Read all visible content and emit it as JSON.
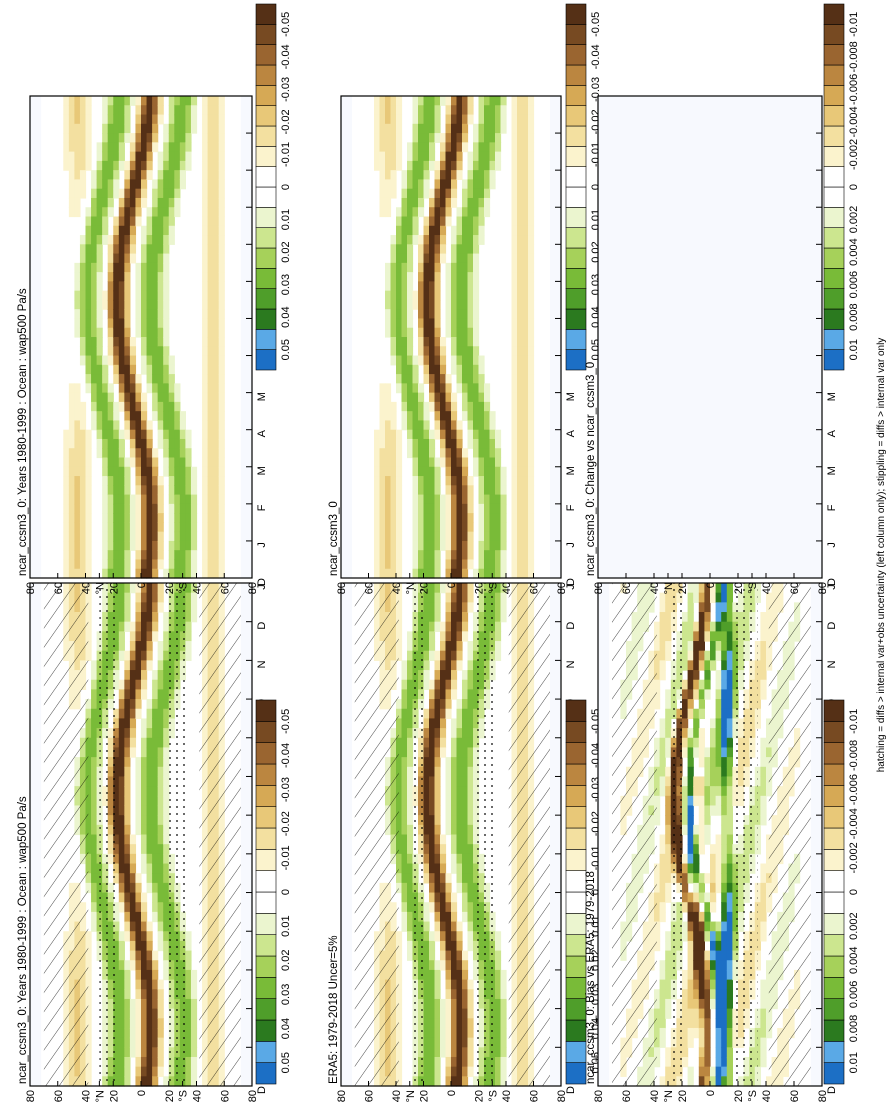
{
  "footer": "hatching = diffs > internal var+obs uncertainty (left column only); stippling = diffs > internal var only",
  "chart_data": [
    {
      "type": "heatmap",
      "title": "ncar_ccsm3_0: Years 1980-1999 : Ocean : wap500 Pa/s",
      "months": [
        "D",
        "J",
        "F",
        "M",
        "A",
        "M",
        "J",
        "J",
        "A",
        "S",
        "O",
        "N",
        "D",
        "J"
      ],
      "lat_ticks": [
        "80",
        "60",
        "40",
        "°N",
        "20",
        "0",
        "20",
        "°S",
        "40",
        "60",
        "80"
      ],
      "levels": [
        "0.05",
        "0.04",
        "0.03",
        "0.02",
        "0.01",
        "0",
        "-0.01",
        "-0.02",
        "-0.03",
        "-0.04",
        "-0.05"
      ],
      "pattern": "clim",
      "hatch": true,
      "stipple": true
    },
    {
      "type": "heatmap",
      "title": "ncar_ccsm3_0: Years 1980-1999 : Ocean : wap500 Pa/s",
      "months": [
        "D",
        "J",
        "F",
        "M",
        "A",
        "M",
        "J",
        "J",
        "A",
        "S",
        "O",
        "N",
        "D",
        "J"
      ],
      "lat_ticks": [
        "80",
        "60",
        "40",
        "°N",
        "20",
        "0",
        "20",
        "°S",
        "40",
        "60",
        "80"
      ],
      "levels": [
        "0.05",
        "0.04",
        "0.03",
        "0.02",
        "0.01",
        "0",
        "-0.01",
        "-0.02",
        "-0.03",
        "-0.04",
        "-0.05"
      ],
      "pattern": "clim",
      "hatch": false,
      "stipple": false
    },
    {
      "type": "heatmap",
      "title": "ERA5: 1979-2018 Uncer=5%",
      "months": [
        "D",
        "J",
        "F",
        "M",
        "A",
        "M",
        "J",
        "J",
        "A",
        "S",
        "O",
        "N",
        "D",
        "J"
      ],
      "lat_ticks": [
        "80",
        "60",
        "40",
        "°N",
        "20",
        "0",
        "20",
        "°S",
        "40",
        "60",
        "80"
      ],
      "levels": [
        "0.05",
        "0.04",
        "0.03",
        "0.02",
        "0.01",
        "0",
        "-0.01",
        "-0.02",
        "-0.03",
        "-0.04",
        "-0.05"
      ],
      "pattern": "clim",
      "hatch": true,
      "stipple": true
    },
    {
      "type": "heatmap",
      "title": "ncar_ccsm3_0",
      "months": [
        "D",
        "J",
        "F",
        "M",
        "A",
        "M",
        "J",
        "J",
        "A",
        "S",
        "O",
        "N",
        "D",
        "J"
      ],
      "lat_ticks": [
        "80",
        "60",
        "40",
        "°N",
        "20",
        "0",
        "20",
        "°S",
        "40",
        "60",
        "80"
      ],
      "levels": [
        "0.05",
        "0.04",
        "0.03",
        "0.02",
        "0.01",
        "0",
        "-0.01",
        "-0.02",
        "-0.03",
        "-0.04",
        "-0.05"
      ],
      "pattern": "clim",
      "hatch": false,
      "stipple": false
    },
    {
      "type": "heatmap",
      "title": "ncar_ccsm3_0: Bias vs ERA5: 1979-2018",
      "months": [
        "D",
        "J",
        "F",
        "M",
        "A",
        "M",
        "J",
        "J",
        "A",
        "S",
        "O",
        "N",
        "D",
        "J"
      ],
      "lat_ticks": [
        "80",
        "60",
        "40",
        "°N",
        "20",
        "0",
        "20",
        "°S",
        "40",
        "60",
        "80"
      ],
      "levels": [
        "0.01",
        "0.008",
        "0.006",
        "0.004",
        "0.002",
        "0",
        "-0.002",
        "-0.004",
        "-0.006",
        "-0.008",
        "-0.01"
      ],
      "pattern": "bias",
      "hatch": true,
      "stipple": true
    },
    {
      "type": "heatmap",
      "title": "ncar_ccsm3_0: Change vs ncar_ccsm3_0",
      "months": [
        "D",
        "J",
        "F",
        "M",
        "A",
        "M",
        "J",
        "J",
        "A",
        "S",
        "O",
        "N",
        "D",
        "J"
      ],
      "lat_ticks": [
        "80",
        "60",
        "40",
        "°N",
        "20",
        "0",
        "20",
        "°S",
        "40",
        "60",
        "80"
      ],
      "levels": [
        "0.01",
        "0.008",
        "0.006",
        "0.004",
        "0.002",
        "0",
        "-0.002",
        "-0.004",
        "-0.006",
        "-0.008",
        "-0.01"
      ],
      "pattern": "empty",
      "hatch": false,
      "stipple": false
    }
  ]
}
